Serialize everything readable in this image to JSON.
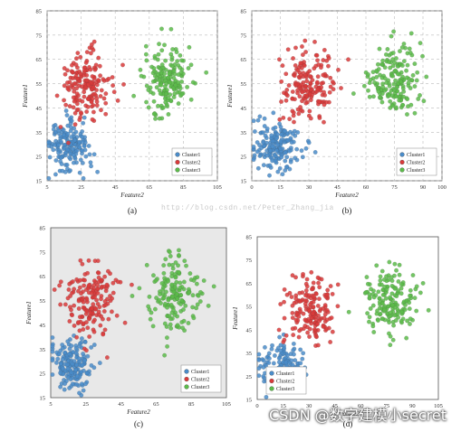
{
  "watermark": "http://blog.csdn.net/Peter_Zhang_jia",
  "credit": "CSDN @数字建模小secret",
  "colors": {
    "cluster1": "#4a8cc9",
    "cluster2": "#d93b3b",
    "cluster3": "#5cbb4a",
    "panel_bg_shaded": "#e8e8e8",
    "panel_bg_plain": "#ffffff"
  },
  "chart_data": [
    {
      "type": "scatter",
      "panel_label": "(a)",
      "xlabel": "Feature2",
      "ylabel": "Feature1",
      "xlim": [
        5,
        105
      ],
      "ylim": [
        15,
        85
      ],
      "xticks": [
        "5",
        "25",
        "45",
        "65",
        "85",
        "105"
      ],
      "yticks": [
        "15",
        "25",
        "35",
        "45",
        "55",
        "65",
        "75",
        "85"
      ],
      "grid": "dashed",
      "background": "plain",
      "legend": "bottom-right",
      "series": [
        {
          "name": "Cluster1",
          "center": [
            17,
            29
          ],
          "spread": [
            6,
            5
          ],
          "count": 170
        },
        {
          "name": "Cluster2",
          "center": [
            28,
            55
          ],
          "spread": [
            7,
            7
          ],
          "count": 170
        },
        {
          "name": "Cluster3",
          "center": [
            75,
            57
          ],
          "spread": [
            7,
            7
          ],
          "count": 170
        }
      ]
    },
    {
      "type": "scatter",
      "panel_label": "(b)",
      "xlabel": "Feature2",
      "ylabel": "Feature1",
      "xlim": [
        0,
        100
      ],
      "ylim": [
        15,
        85
      ],
      "xticks": [
        "0",
        "15",
        "30",
        "45",
        "60",
        "75",
        "90",
        "100"
      ],
      "yticks": [
        "15",
        "25",
        "35",
        "45",
        "55",
        "65",
        "75",
        "85"
      ],
      "grid": "dashed",
      "background": "plain",
      "legend": "bottom-right",
      "series": [
        {
          "name": "Cluster1",
          "center": [
            13,
            29
          ],
          "spread": [
            6,
            5
          ],
          "count": 170
        },
        {
          "name": "Cluster2",
          "center": [
            30,
            55
          ],
          "spread": [
            7,
            7
          ],
          "count": 170
        },
        {
          "name": "Cluster3",
          "center": [
            75,
            57
          ],
          "spread": [
            7,
            7
          ],
          "count": 170
        }
      ]
    },
    {
      "type": "scatter",
      "panel_label": "(c)",
      "xlabel": "Feature2",
      "ylabel": "Feature1",
      "xlim": [
        5,
        105
      ],
      "ylim": [
        15,
        85
      ],
      "xticks": [
        "5",
        "25",
        "45",
        "65",
        "85",
        "105"
      ],
      "yticks": [
        "15",
        "25",
        "35",
        "45",
        "55",
        "65",
        "75",
        "85"
      ],
      "grid": "none",
      "background": "shaded",
      "legend": "bottom-right",
      "series": [
        {
          "name": "Cluster1",
          "center": [
            17,
            29
          ],
          "spread": [
            6,
            5
          ],
          "count": 170
        },
        {
          "name": "Cluster2",
          "center": [
            28,
            55
          ],
          "spread": [
            7,
            7
          ],
          "count": 170
        },
        {
          "name": "Cluster3",
          "center": [
            75,
            57
          ],
          "spread": [
            7,
            7
          ],
          "count": 170
        }
      ]
    },
    {
      "type": "scatter",
      "panel_label": "(d)",
      "xlabel": "Feature2",
      "ylabel": "Feature1",
      "xlim": [
        0,
        105
      ],
      "ylim": [
        15,
        85
      ],
      "xticks": [
        "0",
        "15",
        "30",
        "45",
        "60",
        "75",
        "90",
        "105"
      ],
      "yticks": [
        "15",
        "25",
        "35",
        "45",
        "55",
        "65",
        "75",
        "85"
      ],
      "grid": "none",
      "background": "plain",
      "legend": "bottom-left",
      "series": [
        {
          "name": "Cluster1",
          "center": [
            14,
            29
          ],
          "spread": [
            6,
            5
          ],
          "count": 170
        },
        {
          "name": "Cluster2",
          "center": [
            30,
            53
          ],
          "spread": [
            7,
            7
          ],
          "count": 170
        },
        {
          "name": "Cluster3",
          "center": [
            77,
            57
          ],
          "spread": [
            7,
            7
          ],
          "count": 170
        }
      ]
    }
  ]
}
